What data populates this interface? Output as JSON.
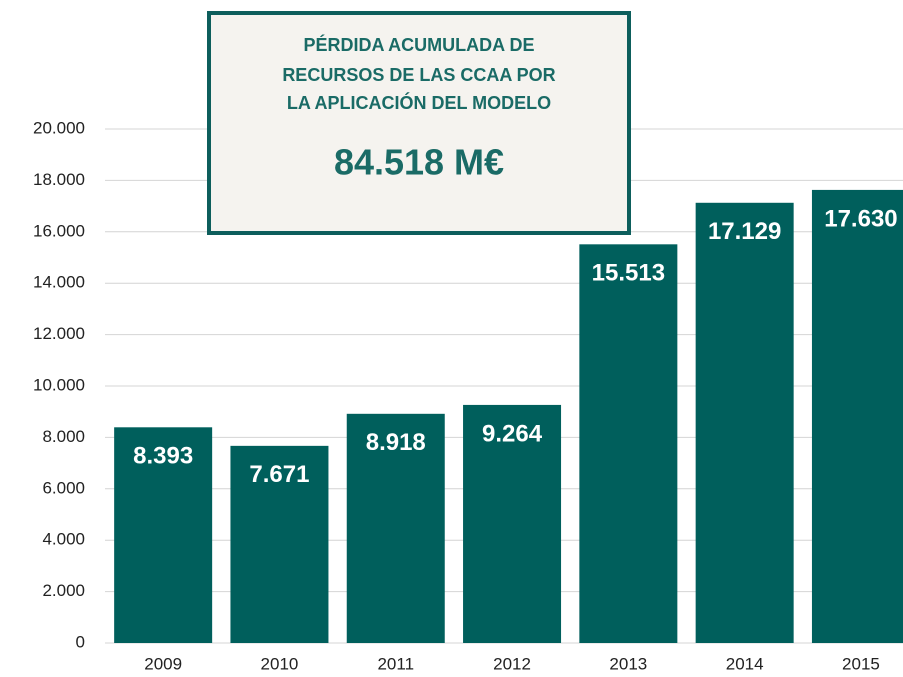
{
  "chart_data": {
    "type": "bar",
    "annotation": {
      "lines": [
        "PÉRDIDA ACUMULADA DE",
        "RECURSOS DE LAS CCAA POR",
        "LA APLICACIÓN DEL MODELO"
      ],
      "total": "84.518 M€"
    },
    "categories": [
      "2009",
      "2010",
      "2011",
      "2012",
      "2013",
      "2014",
      "2015"
    ],
    "values": [
      8393,
      7671,
      8918,
      9264,
      15513,
      17129,
      17630
    ],
    "value_labels": [
      "8.393",
      "7.671",
      "8.918",
      "9.264",
      "15.513",
      "17.129",
      "17.630"
    ],
    "color": "#005f5c",
    "ylim": [
      0,
      20000
    ],
    "yticks": [
      0,
      {
        "value": 2000,
        "label": "2.000"
      },
      {
        "value": 4000,
        "label": "4.000"
      },
      {
        "value": 6000,
        "label": "6.000"
      },
      {
        "value": 8000,
        "label": "8.000"
      },
      {
        "value": 10000,
        "label": "10.000"
      },
      {
        "value": 12000,
        "label": "12.000"
      },
      {
        "value": 14000,
        "label": "14.000"
      },
      {
        "value": 16000,
        "label": "16.000"
      },
      {
        "value": 18000,
        "label": "18.000"
      },
      {
        "value": 20000,
        "label": "20.000"
      }
    ],
    "grid": true
  }
}
